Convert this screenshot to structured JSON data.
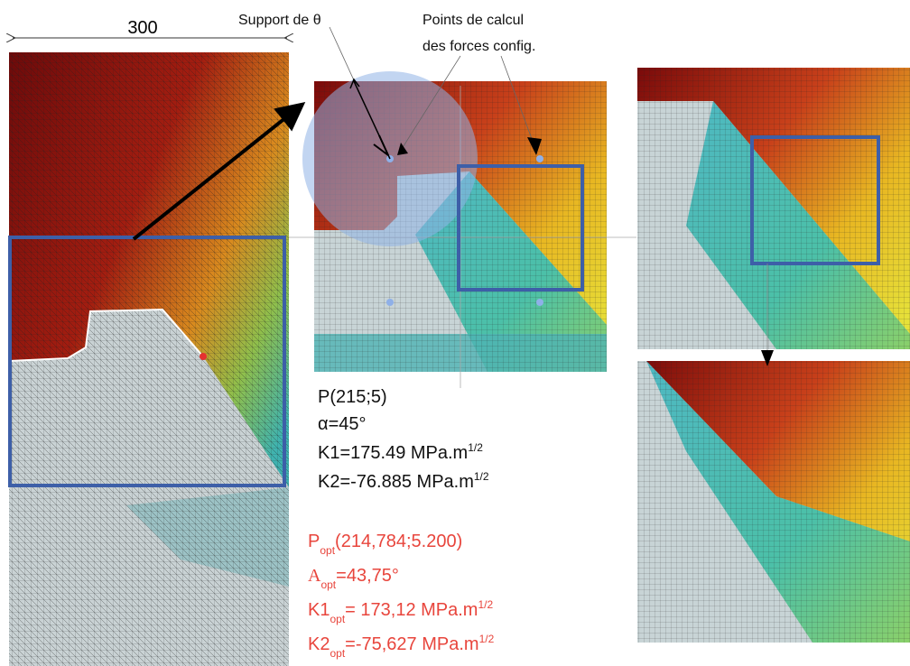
{
  "dimension_label": "300",
  "annotations": {
    "support": "Support de θ",
    "points": [
      "Points de calcul",
      "des forces config."
    ]
  },
  "initial": {
    "point": "P(215;5)",
    "angle": "α=45°",
    "k1": {
      "text": "K1=175.49 MPa.m",
      "exponent": "1/2"
    },
    "k2": {
      "text": "K2=-76.885 MPa.m",
      "exponent": "1/2"
    }
  },
  "optimized": {
    "point": {
      "symbol": "P",
      "subscript": "opt",
      "text": "(214,784;5.200)"
    },
    "angle": {
      "symbol": "A",
      "subscript": "opt",
      "text": "=43,75°"
    },
    "k1": {
      "symbol": "K1",
      "subscript": "opt",
      "text": "= 173,12 MPa.m",
      "exponent": "1/2"
    },
    "k2": {
      "symbol": "K2",
      "subscript": "opt",
      "text": "=-75,627 MPa.m",
      "exponent": "1/2"
    }
  }
}
